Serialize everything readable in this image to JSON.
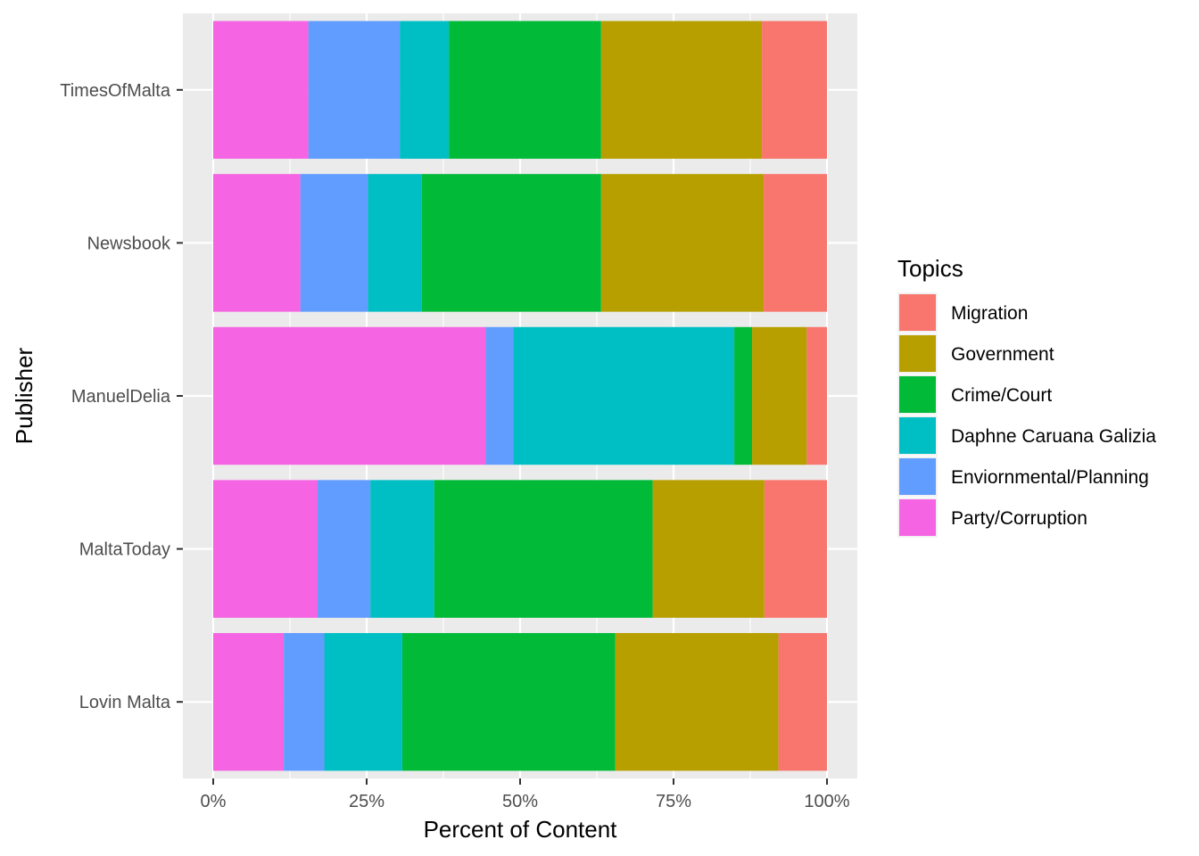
{
  "chart_data": {
    "type": "bar",
    "orientation": "horizontal",
    "stacked": "percent",
    "categories": [
      "TimesOfMalta",
      "Newsbook",
      "ManuelDelia",
      "MaltaToday",
      "Lovin Malta"
    ],
    "series": [
      {
        "name": "Party/Corruption",
        "color": "#F564E3",
        "values": [
          15.5,
          14.2,
          44.4,
          17.0,
          11.5
        ]
      },
      {
        "name": "Enviornmental/Planning",
        "color": "#619CFF",
        "values": [
          14.9,
          11.0,
          4.5,
          8.6,
          6.6
        ]
      },
      {
        "name": "Daphne Caruana Galizia",
        "color": "#00BFC4",
        "values": [
          8.0,
          8.8,
          36.0,
          10.4,
          12.7
        ]
      },
      {
        "name": "Crime/Court",
        "color": "#00BA38",
        "values": [
          24.8,
          29.2,
          2.9,
          35.6,
          34.7
        ]
      },
      {
        "name": "Government",
        "color": "#B79F00",
        "values": [
          26.2,
          26.5,
          8.9,
          18.2,
          26.6
        ]
      },
      {
        "name": "Migration",
        "color": "#F8766D",
        "values": [
          10.6,
          10.3,
          3.3,
          10.2,
          7.9
        ]
      }
    ],
    "xlabel": "Percent of Content",
    "ylabel": "Publisher",
    "xlim": [
      0,
      100
    ],
    "x_ticks": [
      "0%",
      "25%",
      "50%",
      "75%",
      "100%"
    ],
    "legend_title": "Topics",
    "legend_order": [
      "Migration",
      "Government",
      "Crime/Court",
      "Daphne Caruana Galizia",
      "Enviornmental/Planning",
      "Party/Corruption"
    ],
    "legend_position": "right",
    "grid": true,
    "panel_background": "#EBEBEB"
  }
}
